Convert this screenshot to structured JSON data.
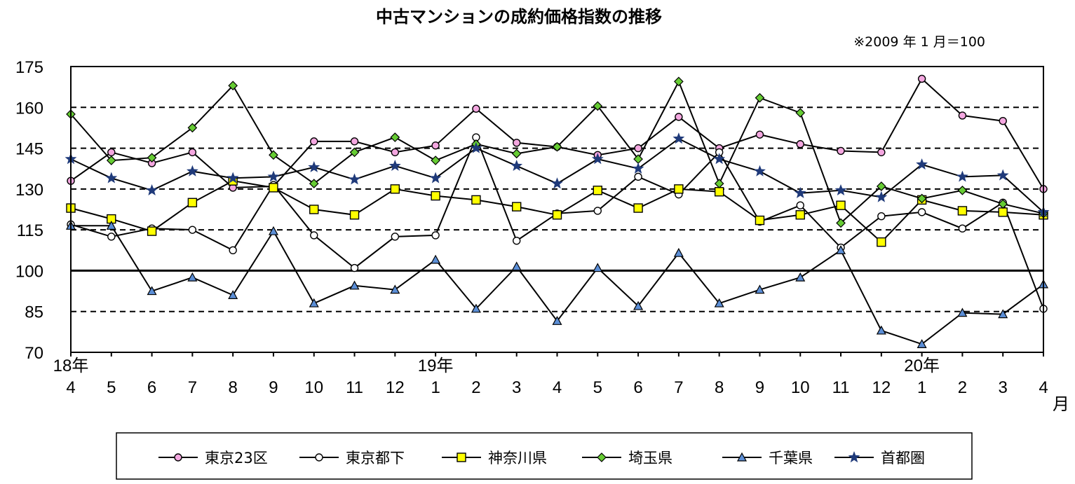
{
  "chart_data": {
    "type": "line",
    "title": "中古マンションの成約価格指数の推移",
    "note": "※2009 年 1 月＝100",
    "ylim": [
      70,
      175
    ],
    "yticks": [
      175,
      160,
      145,
      130,
      115,
      100,
      85,
      70
    ],
    "grid": "dashed-horizontal",
    "categories": [
      "4",
      "5",
      "6",
      "7",
      "8",
      "9",
      "10",
      "11",
      "12",
      "1",
      "2",
      "3",
      "4",
      "5",
      "6",
      "7",
      "8",
      "9",
      "10",
      "11",
      "12",
      "1",
      "2",
      "3",
      "4"
    ],
    "year_labels": [
      {
        "index": 0,
        "label": "18年"
      },
      {
        "index": 9,
        "label": "19年"
      },
      {
        "index": 21,
        "label": "20年"
      }
    ],
    "month_unit": "月",
    "legend_position": "bottom",
    "series": [
      {
        "name": "東京23区",
        "marker": "circle",
        "color": "#f4a7e0",
        "values": [
          133,
          143.5,
          139.5,
          143.5,
          130.5,
          131,
          147.5,
          147.5,
          143.5,
          146,
          159.5,
          147,
          145.5,
          142.5,
          145,
          156.5,
          145,
          150,
          146.5,
          144,
          143.5,
          170.5,
          157,
          155,
          130
        ]
      },
      {
        "name": "東京都下",
        "marker": "circle",
        "color": "#ffffff",
        "values": [
          117,
          112.5,
          115.5,
          115,
          107.5,
          131.5,
          113,
          101,
          112.5,
          113,
          149,
          111,
          121,
          122,
          134.5,
          128,
          143.5,
          118,
          124,
          108.5,
          120,
          121.5,
          115.5,
          125,
          86
        ]
      },
      {
        "name": "神奈川県",
        "marker": "square",
        "color": "#ffff00",
        "values": [
          123,
          119,
          114.5,
          125,
          133,
          130.5,
          122.5,
          120.5,
          130,
          127.5,
          126,
          123.5,
          120.5,
          129.5,
          123,
          130,
          129,
          118.5,
          120.5,
          124,
          110.5,
          126,
          122,
          121.5,
          120.5
        ]
      },
      {
        "name": "埼玉県",
        "marker": "diamond",
        "color": "#66cc33",
        "values": [
          157.5,
          140.5,
          141.5,
          152.5,
          168,
          142.5,
          132,
          143.5,
          149,
          140.5,
          146.5,
          143,
          145.5,
          160.5,
          141,
          169.5,
          132,
          163.5,
          158,
          117.5,
          131,
          126.5,
          129.5,
          124.5,
          121
        ]
      },
      {
        "name": "千葉県",
        "marker": "triangle",
        "color": "#5b8ed6",
        "values": [
          116.5,
          116.5,
          92.5,
          97.5,
          91,
          114.5,
          88,
          94.5,
          93,
          104,
          86,
          101.5,
          81.5,
          101,
          87,
          106.5,
          88,
          93,
          97.5,
          107.5,
          78,
          73,
          84.5,
          84,
          95
        ]
      },
      {
        "name": "首都圏",
        "marker": "star",
        "color": "#1f3a7a",
        "values": [
          141,
          134,
          129.5,
          136.5,
          134,
          134.5,
          138,
          133.5,
          138.5,
          134,
          145,
          138.5,
          132,
          141,
          137.5,
          148.5,
          141,
          136.5,
          128.5,
          129.5,
          127,
          139,
          134.5,
          135,
          121.5
        ]
      }
    ]
  }
}
